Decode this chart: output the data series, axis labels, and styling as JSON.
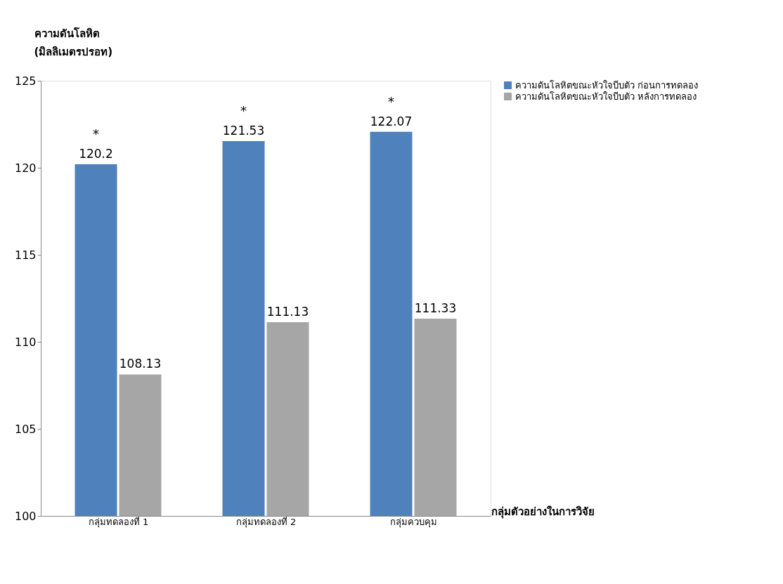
{
  "chart_data": {
    "type": "bar",
    "xlabel": "กลุ่มตัวอย่างในการวิจัย",
    "ylabel": "ความดันโลหิต (มิลลิเมตรปรอท)",
    "categories": [
      "กลุ่มทดลองที่ 1",
      "กลุ่มทดลองที่ 2",
      "กลุ่มควบคุม"
    ],
    "series": [
      {
        "name": "ความดันโลหิตขณะหัวใจบีบตัว ก่อนการทดลอง",
        "color": "#4f81bd",
        "values": [
          120.2,
          121.53,
          122.07
        ]
      },
      {
        "name": "ความดันโลหิตขณะหัวใจบีบตัว หลังการทดลอง",
        "color": "#a6a6a6",
        "values": [
          108.13,
          111.13,
          111.33
        ]
      }
    ],
    "ylim": [
      100,
      125
    ],
    "yticks": [
      100,
      105,
      110,
      115,
      120,
      125
    ],
    "data_labels": true,
    "grid": false,
    "legend": "right",
    "annotations": [
      "*",
      "*",
      "*"
    ]
  }
}
